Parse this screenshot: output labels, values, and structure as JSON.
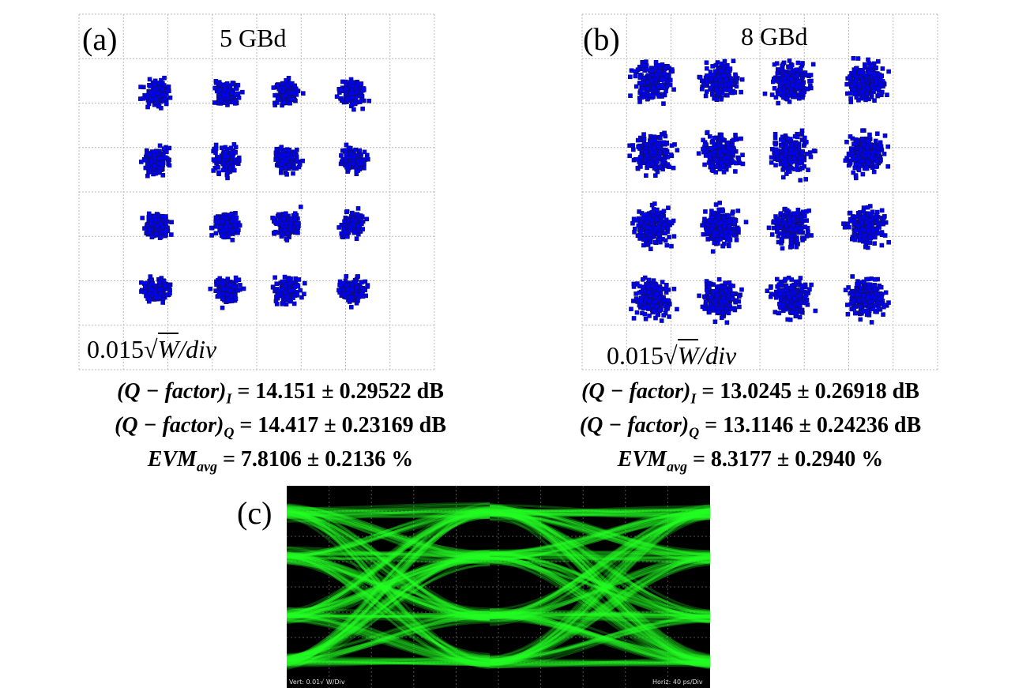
{
  "panels": [
    {
      "label": "(a)",
      "rate": "5 GBd",
      "scale": {
        "value": "0.015",
        "root": "√",
        "radicand": "W",
        "unit": "/div"
      },
      "metrics": [
        {
          "name": "(Q − factor)",
          "sub": "I",
          "result": " = 14.151 ± 0.29522 dB"
        },
        {
          "name": "(Q − factor)",
          "sub": "Q",
          "result": " = 14.417 ± 0.23169 dB"
        },
        {
          "name": "EVM",
          "sub": "avg",
          "result": " = 7.8106 ± 0.2136 %"
        }
      ]
    },
    {
      "label": "(b)",
      "rate": "8 GBd",
      "scale": {
        "value": "0.015",
        "root": "√",
        "radicand": "W",
        "unit": "/div"
      },
      "metrics": [
        {
          "name": "(Q − factor)",
          "sub": "I",
          "result": " = 13.0245 ± 0.26918 dB"
        },
        {
          "name": "(Q − factor)",
          "sub": "Q",
          "result": " = 13.1146 ± 0.24236 dB"
        },
        {
          "name": "EVM",
          "sub": "avg",
          "result": " = 8.3177 ± 0.2940 %"
        }
      ]
    }
  ],
  "eye": {
    "label": "(c)",
    "vertical": "Vert: 0.01√ W/Div",
    "horizontal": "Horiz: 40 ps/Div"
  }
}
